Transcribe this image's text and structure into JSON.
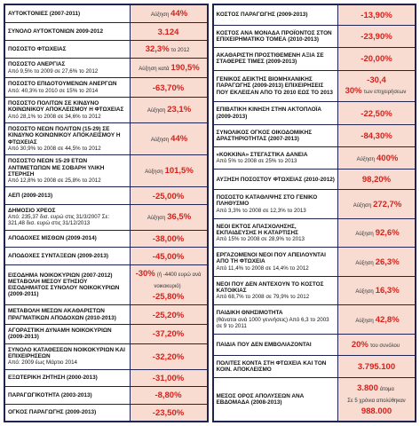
{
  "columns": [
    {
      "rows": [
        {
          "label": "ΑΥΤΟΚΤΟΝΙΕΣ (2007-2011)",
          "values": [
            {
              "pre": "Αύξηση",
              "main": "44%"
            }
          ]
        },
        {
          "label": "ΣΥΝΟΛΟ ΑΥΤΟΚΤΟΝΙΩΝ 2009-2012",
          "values": [
            {
              "main": "3.124"
            }
          ]
        },
        {
          "label": "ΠΟΣΟΣΤΟ ΦΤΩΧΕΙΑΣ",
          "values": [
            {
              "main": "32,3%",
              "post": "το 2012"
            }
          ]
        },
        {
          "label": "ΠΟΣΟΣΤΟ ΑΝΕΡΓΙΑΣ",
          "note": "Από 9,5% το 2009 σε 27,6% το 2012",
          "values": [
            {
              "pre": "Αύξηση κατά",
              "main": "190,5%"
            }
          ]
        },
        {
          "label": "ΠΟΣΟΣΤΟ ΕΠΙΔΟΤΟΥΜΕΝΩΝ ΑΝΕΡΓΩΝ",
          "note": "Από: 40,3% το 2010 σε 15% το 2014",
          "values": [
            {
              "main": "-63,70%"
            }
          ]
        },
        {
          "label": "ΠΟΣΟΣΤΟ ΠΟΛΙΤΩΝ ΣΕ ΚΙΝΔΥΝΟ ΚΟΙΝΩΝΙΚΟΥ ΑΠΟΚΛΕΙΣΜΟΥ Η ΦΤΩΧΕΙΑΣ",
          "note": "Από 28,1% το 2008 σε 34,6% το 2012",
          "values": [
            {
              "pre": "Αύξηση",
              "main": "23,1%"
            }
          ]
        },
        {
          "label": "ΠΟΣΟΣΤΟ ΝΕΩΝ ΠΟΛΙΤΩΝ (15-29) ΣΕ ΚΙΝΔΥΝΟ ΚΟΙΝΩΝΙΚΟΥ ΑΠΟΚΛΕΙΣΜΟΥ Η ΦΤΩΧΕΙΑΣ",
          "note": "Από 30,9% το 2008 σε 44,5% το 2012",
          "values": [
            {
              "pre": "Αύξηση",
              "main": "44%"
            }
          ]
        },
        {
          "label": "ΠΟΣΟΣΤΟ ΝΕΩΝ 15-29 ΕΤΩΝ ΑΝΤΙΜΕΤΩΠΩΝ ΜΕ ΣΟΒΑΡΗ ΥΛΙΚΗ ΣΤΕΡΗΣΗ",
          "note": "Από 12,8% το 2008 σε 25,8% το 2012",
          "values": [
            {
              "pre": "Αύξηση",
              "main": "101,5%"
            }
          ]
        },
        {
          "label": "ΑΕΠ (2009-2013)",
          "values": [
            {
              "main": "-25,00%"
            }
          ]
        },
        {
          "label": "ΔΗΜΟΣΙΟ ΧΡΕΟΣ",
          "note": "Από: 235,37 δισ. ευρώ στις 31/3/2007 Σε: 321,48 δισ. ευρώ στις 31/12/2013",
          "values": [
            {
              "pre": "Αύξηση",
              "main": "36,5%"
            }
          ]
        },
        {
          "label": "ΑΠΟΔΟΧΕΣ ΜΙΣΘΩΝ (2009-2014)",
          "values": [
            {
              "main": "-38,00%"
            }
          ]
        },
        {
          "label": "ΑΠΟΔΟΧΕΣ ΣΥΝΤΑΞΕΩΝ (2009-2013)",
          "values": [
            {
              "main": "-45,00%"
            }
          ]
        },
        {
          "label": "ΕΙΣΟΔΗΜΑ ΝΟΙΚΟΚΥΡΙΩΝ (2007-2012) ΜΕΤΑΒΟΛΗ ΜΕΣΟΥ ΕΤΗΣΙΟΥ ΕΙΣΟΔΗΜΑΤΟΣ ΣΥΝΟΛΟΥ ΝΟΙΚΟΚΥΡΙΩΝ (2009-2011)",
          "values": [
            {
              "main": "-30%",
              "post": "(ή -4400 ευρώ ανά νοικοκυριό)"
            },
            {
              "main": "-25,80%"
            }
          ]
        },
        {
          "label": "ΜΕΤΑΒΟΛΗ ΜΕΣΩΝ ΑΚΑΘΑΡΙΣΤΩΝ ΠΡΑΓΜΑΤΙΚΩΝ ΑΠΟΔΟΧΩΝ (2010-2013)",
          "values": [
            {
              "main": "-25,20%"
            }
          ]
        },
        {
          "label": "ΑΓΟΡΑΣΤΙΚΗ ΔΥΝΑΜΗ ΝΟΙΚΟΚΥΡΙΩΝ (2009-2013)",
          "values": [
            {
              "main": "-37,20%"
            }
          ]
        },
        {
          "label": "ΣΥΝΟΛΟ ΚΑΤΑΘΕΣΕΩΝ ΝΟΙΚΟΚΥΡΙΩΝ ΚΑΙ ΕΠΙΧΕΙΡΗΣΕΩΝ",
          "note": "Από: 2009 έως Μάρτιο 2014",
          "values": [
            {
              "main": "-32,20%"
            }
          ]
        },
        {
          "label": "ΕΞΩΤΕΡΙΚΗ ΖΗΤΗΣΗ (2000-2013)",
          "values": [
            {
              "main": "-31,00%"
            }
          ]
        },
        {
          "label": "ΠΑΡΑΓΩΓΙΚΟΤΗΤΑ (2003-2013)",
          "values": [
            {
              "main": "-8,80%"
            }
          ]
        },
        {
          "label": "ΟΓΚΟΣ ΠΑΡΑΓΩΓΗΣ (2009-2013)",
          "values": [
            {
              "main": "-23,50%"
            }
          ]
        }
      ]
    },
    {
      "rows": [
        {
          "label": "ΚΟΣΤΟΣ ΠΑΡΑΓΩΓΗΣ (2009-2013)",
          "values": [
            {
              "main": "-13,90%"
            }
          ]
        },
        {
          "label": "ΚΟΣΤΟΣ ΑΝΑ ΜΟΝΑΔΑ ΠΡΟΪΟΝΤΟΣ ΣΤΟΝ ΕΠΙΧΕΙΡΗΜΑΤΙΚΟ ΤΟΜΕΑ (2010-2013)",
          "values": [
            {
              "main": "-23,90%"
            }
          ]
        },
        {
          "label": "ΑΚΑΘΑΡΙΣΤΗ ΠΡΟΣΤΙΘΕΜΕΝΗ ΑΞΙΑ ΣΕ ΣΤΑΘΕΡΕΣ ΤΙΜΕΣ (2009-2013)",
          "values": [
            {
              "main": "-20,00%"
            }
          ]
        },
        {
          "label": "ΓΕΝΙΚΟΣ ΔΕΙΚΤΗΣ ΒΙΟΜΗΧΑΝΙΚΗΣ ΠΑΡΑΓΩΓΗΣ (2009-2013) ΕΠΙΧΕΙΡΗΣΕΙΣ ΠΟΥ ΕΚΛΕΙΣΑΝ ΑΠΟ ΤΟ 2010 ΕΩΣ ΤΟ 2013",
          "values": [
            {
              "main": "-30,4"
            },
            {
              "main": "30%",
              "post": "των επιχειρήσεων"
            }
          ]
        },
        {
          "label": "ΕΠΙΒΑΤΙΚΗ ΚΙΝΗΣΗ ΣΤΗΝ ΑΚΤΟΠΛΟΪΑ (2009-2013)",
          "values": [
            {
              "main": "-22,50%"
            }
          ]
        },
        {
          "label": "ΣΥΝΟΛΙΚΟΣ ΟΓΚΟΣ ΟΙΚΟΔΟΜΙΚΗΣ ΔΡΑΣΤΗΡΙΟΤΗΤΑΣ (2007-2013)",
          "values": [
            {
              "main": "-84,30%"
            }
          ]
        },
        {
          "label": "«ΚΟΚΚΙΝΑ» ΣΤΕΓΑΣΤΙΚΑ ΔΑΝΕΙΑ",
          "note": "Από 5% το 2008 σε 25% το 2013",
          "values": [
            {
              "pre": "Αύξηση",
              "main": "400%"
            }
          ]
        },
        {
          "label": "ΑΥΞΗΣΗ ΠΟΣΟΣΤΟΥ ΦΤΩΧΕΙΑΣ (2010-2012)",
          "values": [
            {
              "main": "98,20%"
            }
          ]
        },
        {
          "label": "ΠΟΣΟΣΤΟ ΚΑΤΑΘΛΙΨΗΣ ΣΤΟ ΓΕΝΙΚΟ ΠΛΗΘΥΣΜΟ",
          "note": "Από 3,3% το 2008 σε 12,3% το 2013",
          "values": [
            {
              "pre": "Αύξηση",
              "main": "272,7%"
            }
          ]
        },
        {
          "label": "ΝΕΟΙ ΕΚΤΟΣ ΑΠΑΣΧΟΛΗΣΗΣ, ΕΚΠΑΙΔΕΥΣΗΣ Η ΚΑΤΑΡΤΙΣΗΣ",
          "note": "Από 15% το 2008 σε 28,9% το 2013",
          "values": [
            {
              "pre": "Αύξηση",
              "main": "92,6%"
            }
          ]
        },
        {
          "label": "ΕΡΓΑΖΟΜΕΝΟΙ ΝΕΟΙ ΠΟΥ ΑΠΕΙΛΟΥΝΤΑΙ ΑΠΟ ΤΗ ΦΤΩΧΕΙΑ",
          "note": "Από 11,4% το 2008 σε 14,4% το 2012",
          "values": [
            {
              "pre": "Αύξηση",
              "main": "26,3%"
            }
          ]
        },
        {
          "label": "ΝΕΟΙ ΠΟΥ ΔΕΝ ΑΝΤΕΧΟΥΝ ΤΟ ΚΟΣΤΟΣ ΚΑΤΟΙΚΙΑΣ",
          "note": "Από 68,7% το 2008 σε 79,9% το 2012",
          "values": [
            {
              "pre": "Αύξηση",
              "main": "16,3%"
            }
          ]
        },
        {
          "label": "ΠΑΙΔΙΚΗ ΘΝΗΣΙΜΟΤΗΤΑ",
          "note": "(θάνατοι ανά 1000 γεννήσεις) Από 6,3 το 2003 σε 9 το 2011",
          "values": [
            {
              "pre": "Αύξηση",
              "main": "42,8%"
            }
          ]
        },
        {
          "label": "ΠΑΙΔΙΑ ΠΟΥ ΔΕΝ ΕΜΒΟΛΙΑΖΟΝΤΑΙ",
          "values": [
            {
              "main": "20%",
              "post": "του συνόλου"
            }
          ]
        },
        {
          "label": "ΠΟΛΙΤΕΣ ΚΟΝΤΑ ΣΤΗ ΦΤΩΧΕΙΑ ΚΑΙ ΤΟΝ ΚΟΙΝ. ΑΠΟΚΛΕΙΣΜΟ",
          "values": [
            {
              "main": "3.795.100"
            }
          ]
        },
        {
          "label": "ΜΕΣΟΣ ΟΡΟΣ ΑΠΟΛΥΣΕΩΝ ΑΝΑ ΕΒΔΟΜΑΔΑ (2008-2013)",
          "values": [
            {
              "main": "3.800",
              "post": "άτομα"
            },
            {
              "pre": "Σε 5 χρόνια απολύθηκαν"
            },
            {
              "main": "988.000"
            }
          ]
        }
      ]
    }
  ]
}
